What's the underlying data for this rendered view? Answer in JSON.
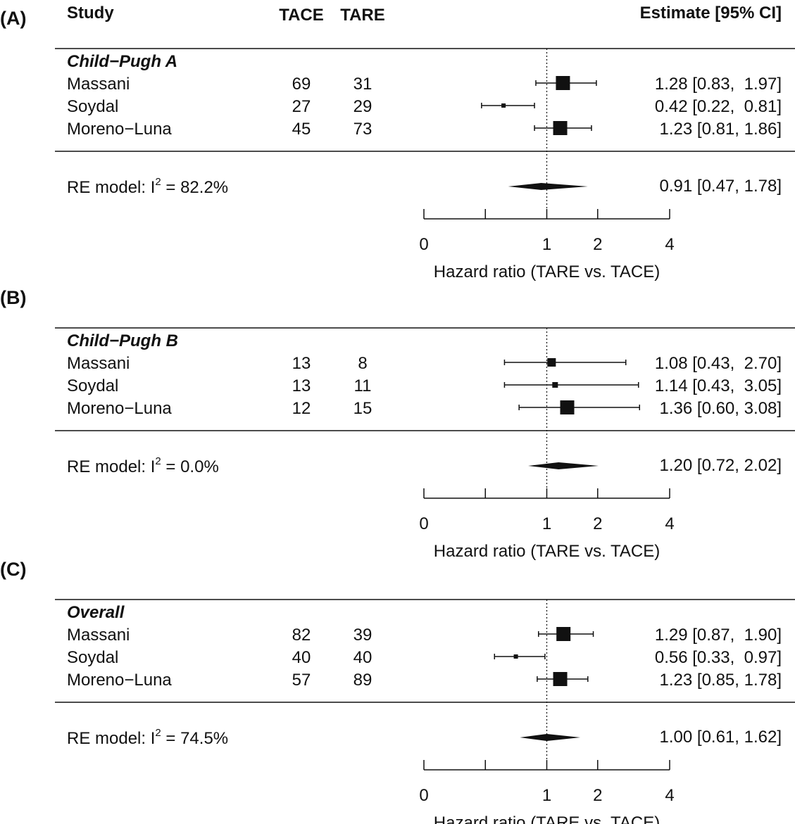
{
  "headers": {
    "study": "Study",
    "tace": "TACE",
    "tare": "TARE",
    "estimate": "Estimate [95% CI]"
  },
  "chart_data": [
    {
      "type": "forest",
      "panel_label": "(A)",
      "group_label": "Child−Pugh A",
      "xlabel": "Hazard ratio (TARE vs. TACE)",
      "x_scale": "sqrt",
      "xlim": [
        0,
        4
      ],
      "ticks": [
        0,
        0.25,
        1,
        2,
        4
      ],
      "tick_labels": [
        "0",
        "",
        "1",
        "2",
        "4"
      ],
      "reference_line": 1,
      "studies": [
        {
          "name": "Massani",
          "tace": "69",
          "tare": "31",
          "estimate": 1.28,
          "lower": 0.83,
          "upper": 1.97,
          "ci_text": "1.28 [0.83,  1.97]"
        },
        {
          "name": "Soydal",
          "tace": "27",
          "tare": "29",
          "estimate": 0.42,
          "lower": 0.22,
          "upper": 0.81,
          "ci_text": "0.42 [0.22,  0.81]"
        },
        {
          "name": "Moreno−Luna",
          "tace": "45",
          "tare": "73",
          "estimate": 1.23,
          "lower": 0.81,
          "upper": 1.86,
          "ci_text": "1.23 [0.81, 1.86]"
        }
      ],
      "summary": {
        "label_prefix": "RE model: I",
        "label_sup": "2",
        "label_suffix": " = 82.2%",
        "estimate": 0.91,
        "lower": 0.47,
        "upper": 1.78,
        "ci_text": "0.91 [0.47, 1.78]"
      }
    },
    {
      "type": "forest",
      "panel_label": "(B)",
      "group_label": "Child−Pugh B",
      "xlabel": "Hazard ratio (TARE vs. TACE)",
      "x_scale": "sqrt",
      "xlim": [
        0,
        4
      ],
      "ticks": [
        0,
        0.25,
        1,
        2,
        4
      ],
      "tick_labels": [
        "0",
        "",
        "1",
        "2",
        "4"
      ],
      "reference_line": 1,
      "studies": [
        {
          "name": "Massani",
          "tace": "13",
          "tare": "8",
          "estimate": 1.08,
          "lower": 0.43,
          "upper": 2.7,
          "ci_text": "1.08 [0.43,  2.70]"
        },
        {
          "name": "Soydal",
          "tace": "13",
          "tare": "11",
          "estimate": 1.14,
          "lower": 0.43,
          "upper": 3.05,
          "ci_text": "1.14 [0.43,  3.05]"
        },
        {
          "name": "Moreno−Luna",
          "tace": "12",
          "tare": "15",
          "estimate": 1.36,
          "lower": 0.6,
          "upper": 3.08,
          "ci_text": "1.36 [0.60, 3.08]"
        }
      ],
      "summary": {
        "label_prefix": "RE model: I",
        "label_sup": "2",
        "label_suffix": " = 0.0%",
        "estimate": 1.2,
        "lower": 0.72,
        "upper": 2.02,
        "ci_text": "1.20 [0.72, 2.02]"
      }
    },
    {
      "type": "forest",
      "panel_label": "(C)",
      "group_label": "Overall",
      "xlabel": "Hazard ratio (TARE vs. TACE)",
      "x_scale": "sqrt",
      "xlim": [
        0,
        4
      ],
      "ticks": [
        0,
        0.25,
        1,
        2,
        4
      ],
      "tick_labels": [
        "0",
        "",
        "1",
        "2",
        "4"
      ],
      "reference_line": 1,
      "studies": [
        {
          "name": "Massani",
          "tace": "82",
          "tare": "39",
          "estimate": 1.29,
          "lower": 0.87,
          "upper": 1.9,
          "ci_text": "1.29 [0.87,  1.90]"
        },
        {
          "name": "Soydal",
          "tace": "40",
          "tare": "40",
          "estimate": 0.56,
          "lower": 0.33,
          "upper": 0.97,
          "ci_text": "0.56 [0.33,  0.97]"
        },
        {
          "name": "Moreno−Luna",
          "tace": "57",
          "tare": "89",
          "estimate": 1.23,
          "lower": 0.85,
          "upper": 1.78,
          "ci_text": "1.23 [0.85, 1.78]"
        }
      ],
      "summary": {
        "label_prefix": "RE model: I",
        "label_sup": "2",
        "label_suffix": " = 74.5%",
        "estimate": 1.0,
        "lower": 0.61,
        "upper": 1.62,
        "ci_text": "1.00 [0.61, 1.62]"
      }
    }
  ]
}
